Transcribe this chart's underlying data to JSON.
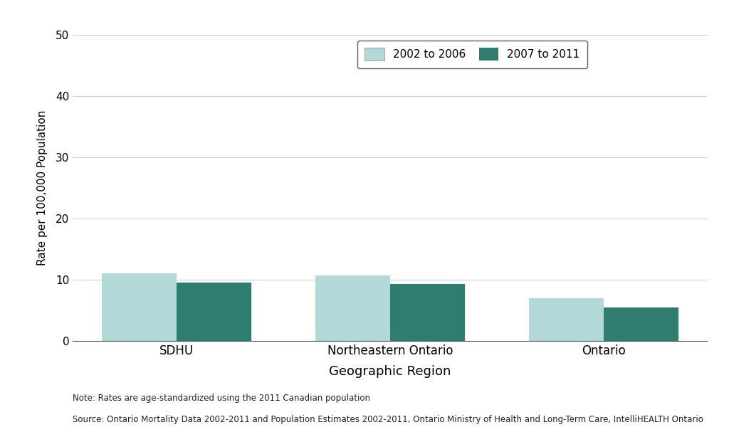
{
  "categories": [
    "SDHU",
    "Northeastern Ontario",
    "Ontario"
  ],
  "values_2002_2006": [
    11.0,
    10.7,
    7.0
  ],
  "values_2007_2011": [
    9.5,
    9.3,
    5.5
  ],
  "color_2002_2006": "#b2d8d8",
  "color_2007_2011": "#2e7d6e",
  "legend_labels": [
    "2002 to 2006",
    "2007 to 2011"
  ],
  "xlabel": "Geographic Region",
  "ylabel": "Rate per 100,000 Population",
  "ylim": [
    0,
    50
  ],
  "yticks": [
    0,
    10,
    20,
    30,
    40,
    50
  ],
  "bar_width": 0.35,
  "note_line1": "Note: Rates are age-standardized using the 2011 Canadian population",
  "note_line2": "Source: Ontario Mortality Data 2002-2011 and Population Estimates 2002-2011, Ontario Ministry of Health and Long-Term Care, IntelliHEALTH Ontario",
  "background_color": "#ffffff",
  "grid_color": "#d0d0d0"
}
